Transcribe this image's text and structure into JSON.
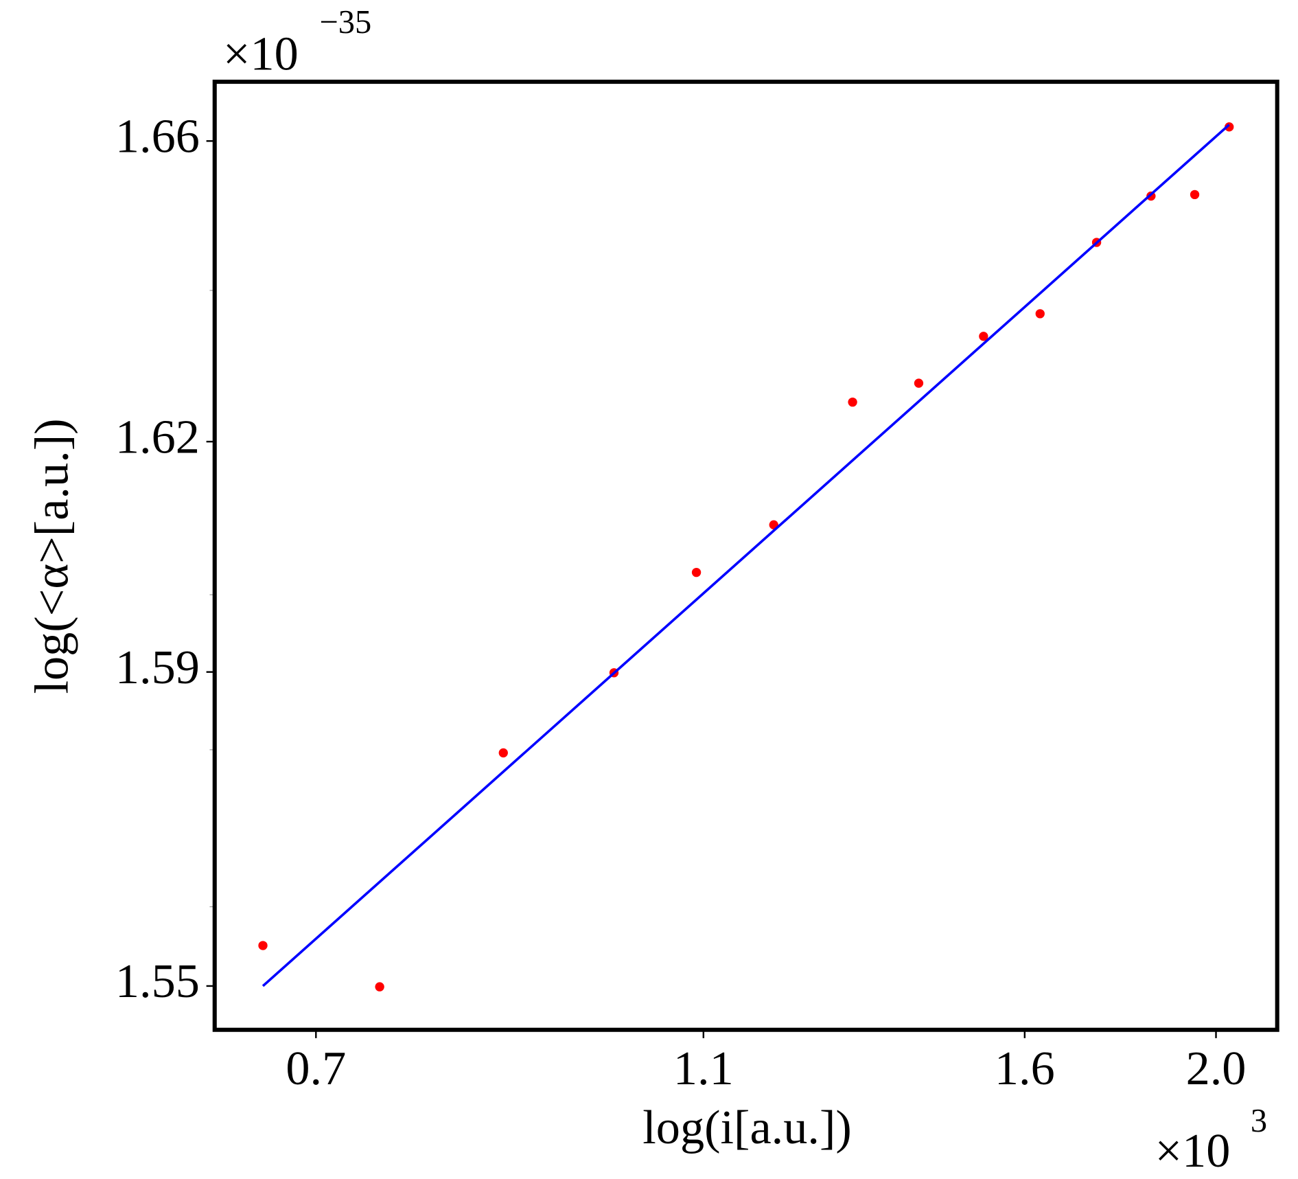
{
  "chart_data": {
    "type": "scatter",
    "xlabel": "log(i[a.u.])",
    "ylabel": "log(<α>[a.u.])",
    "x_offset": {
      "base": "×10",
      "exponent": "3"
    },
    "y_offset": {
      "base": "×10",
      "exponent": "−35"
    },
    "xscale": "log",
    "yscale": "log",
    "xlim": [
      0.622,
      2.148
    ],
    "ylim": [
      1.5445,
      1.668
    ],
    "xticks": [
      0.7,
      1.1,
      1.6,
      {
        "value": 2,
        "label": "2.0"
      }
    ],
    "yticks": [
      1.55,
      1.59,
      1.62,
      1.66
    ],
    "yminor": [
      1.56,
      1.58,
      1.6,
      1.64
    ],
    "series": [
      {
        "color": "#ff0000",
        "style": "points",
        "x": [
          0.658,
          0.754,
          0.871,
          0.991,
          1.091,
          1.194,
          1.309,
          1.414,
          1.525,
          1.629,
          1.74,
          1.854,
          1.951,
          2.031
        ],
        "values": [
          1.5551,
          1.5499,
          1.5796,
          1.5899,
          1.6029,
          1.6091,
          1.6252,
          1.6277,
          1.6339,
          1.6369,
          1.6464,
          1.6526,
          1.6528,
          1.6619
        ]
      },
      {
        "color": "#0000ff",
        "style": "line",
        "x": [
          0.658,
          2.031
        ],
        "values": [
          1.55,
          1.6622
        ]
      }
    ]
  }
}
